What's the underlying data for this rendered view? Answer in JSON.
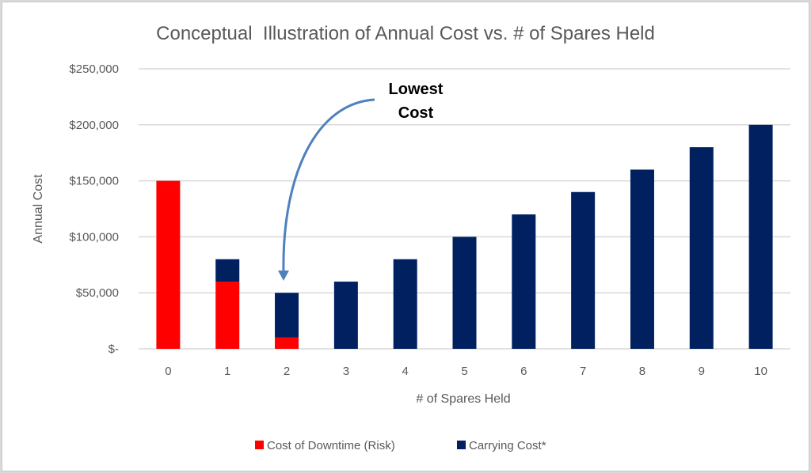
{
  "chart_data": {
    "type": "bar",
    "stacked": true,
    "title": "Conceptual  Illustration of Annual Cost vs. # of Spares Held",
    "xlabel": "# of Spares Held",
    "ylabel": "Annual Cost",
    "categories": [
      "0",
      "1",
      "2",
      "3",
      "4",
      "5",
      "6",
      "7",
      "8",
      "9",
      "10"
    ],
    "series": [
      {
        "name": "Cost of Downtime (Risk)",
        "color": "#ff0000",
        "values": [
          150000,
          60000,
          10000,
          0,
          0,
          0,
          0,
          0,
          0,
          0,
          0
        ]
      },
      {
        "name": "Carrying Cost*",
        "color": "#002060",
        "values": [
          0,
          20000,
          40000,
          60000,
          80000,
          100000,
          120000,
          140000,
          160000,
          180000,
          200000
        ]
      }
    ],
    "ylim": [
      0,
      250000
    ],
    "yticks": [
      0,
      50000,
      100000,
      150000,
      200000,
      250000
    ],
    "ytick_labels": [
      "$-",
      "$50,000",
      "$100,000",
      "$150,000",
      "$200,000",
      "$250,000"
    ],
    "grid": true,
    "legend": "bottom",
    "annotation": {
      "lines": [
        "Lowest",
        "Cost"
      ],
      "target_category": "2",
      "arrow_color": "#4f81bd"
    }
  }
}
